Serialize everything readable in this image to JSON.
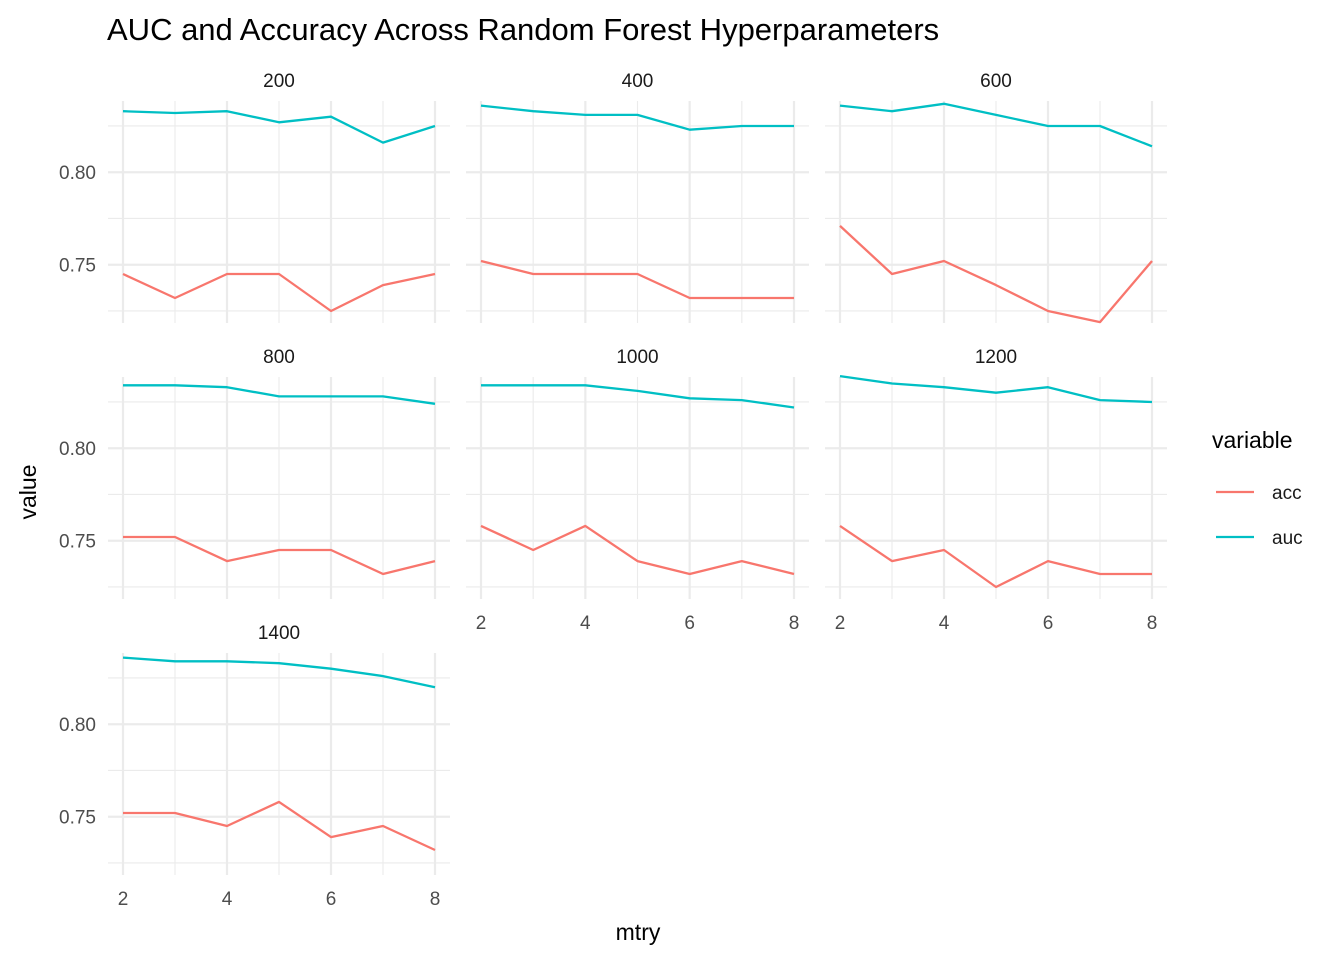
{
  "chart_data": {
    "type": "line",
    "title": "AUC and Accuracy Across Random Forest Hyperparameters",
    "xlabel": "mtry",
    "ylabel": "value",
    "x": [
      2,
      3,
      4,
      5,
      6,
      7,
      8
    ],
    "x_ticks": [
      2,
      4,
      6,
      8
    ],
    "y_ticks": [
      0.75,
      0.8
    ],
    "y_tick_labels": [
      "0.75",
      "0.80"
    ],
    "xlim": [
      2,
      8
    ],
    "ylim": [
      0.7185,
      0.8385
    ],
    "grid": true,
    "legend": {
      "title": "variable",
      "position": "right",
      "entries": [
        {
          "label": "acc",
          "color": "#F8766D"
        },
        {
          "label": "auc",
          "color": "#00BFC4"
        }
      ]
    },
    "facets": [
      {
        "label": "200",
        "series": {
          "acc": [
            0.745,
            0.732,
            0.745,
            0.745,
            0.725,
            0.739,
            0.745
          ],
          "auc": [
            0.833,
            0.832,
            0.833,
            0.827,
            0.83,
            0.816,
            0.825
          ]
        }
      },
      {
        "label": "400",
        "series": {
          "acc": [
            0.752,
            0.745,
            0.745,
            0.745,
            0.732,
            0.732,
            0.732
          ],
          "auc": [
            0.836,
            0.833,
            0.831,
            0.831,
            0.823,
            0.825,
            0.825
          ]
        }
      },
      {
        "label": "600",
        "series": {
          "acc": [
            0.771,
            0.745,
            0.752,
            0.739,
            0.725,
            0.719,
            0.752
          ],
          "auc": [
            0.836,
            0.833,
            0.837,
            0.831,
            0.825,
            0.825,
            0.814
          ]
        }
      },
      {
        "label": "800",
        "series": {
          "acc": [
            0.752,
            0.752,
            0.739,
            0.745,
            0.745,
            0.732,
            0.739
          ],
          "auc": [
            0.834,
            0.834,
            0.833,
            0.828,
            0.828,
            0.828,
            0.824
          ]
        }
      },
      {
        "label": "1000",
        "series": {
          "acc": [
            0.758,
            0.745,
            0.758,
            0.739,
            0.732,
            0.739,
            0.732
          ],
          "auc": [
            0.834,
            0.834,
            0.834,
            0.831,
            0.827,
            0.826,
            0.822
          ]
        }
      },
      {
        "label": "1200",
        "series": {
          "acc": [
            0.758,
            0.739,
            0.745,
            0.725,
            0.739,
            0.732,
            0.732
          ],
          "auc": [
            0.839,
            0.835,
            0.833,
            0.83,
            0.833,
            0.826,
            0.825
          ]
        }
      },
      {
        "label": "1400",
        "series": {
          "acc": [
            0.752,
            0.752,
            0.745,
            0.758,
            0.739,
            0.745,
            0.732
          ],
          "auc": [
            0.836,
            0.834,
            0.834,
            0.833,
            0.83,
            0.826,
            0.82
          ]
        }
      }
    ]
  }
}
